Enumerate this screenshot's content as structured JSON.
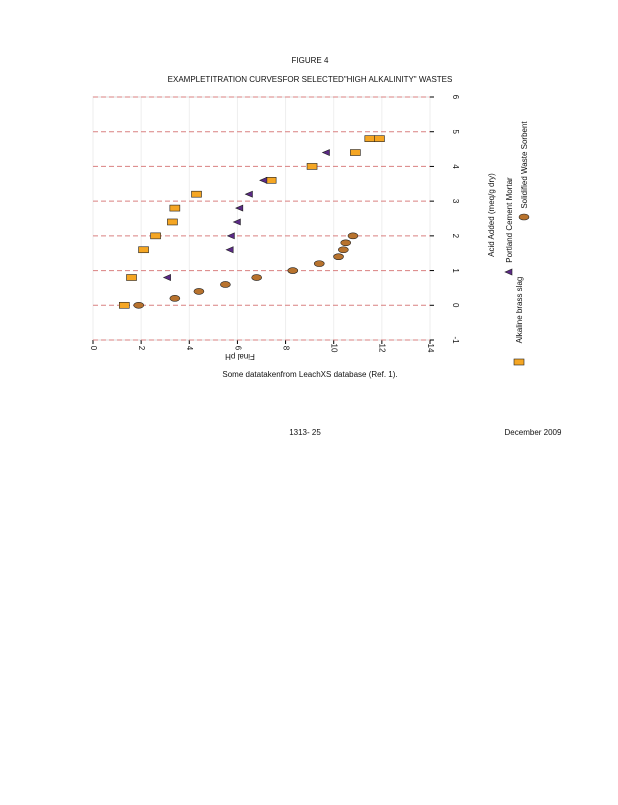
{
  "header": {
    "figure": "FIGURE 4",
    "title": "EXAMPLETITRATION   CURVESFOR  SELECTED\"HIGH  ALKALINITY\"  WASTES"
  },
  "chart_data": {
    "type": "scatter",
    "x_label": "Final pH",
    "y_label": "Acid Added (meq/g dry)",
    "xlim": [
      0,
      14
    ],
    "xticks": [
      0,
      2,
      4,
      6,
      8,
      10,
      12,
      14
    ],
    "ylim": [
      -1,
      6
    ],
    "yticks": [
      -1,
      0,
      1,
      2,
      3,
      4,
      5,
      6
    ],
    "grid": true,
    "legend": "right",
    "series": [
      {
        "name": "Alkaline brass slag",
        "color": "#f5a623",
        "marker": "square",
        "x": [
          1.3,
          1.6,
          2.1,
          2.6,
          3.3,
          3.4,
          4.3,
          7.4,
          9.1,
          10.9,
          11.5,
          11.9
        ],
        "values": [
          0,
          0.8,
          1.6,
          2.0,
          2.4,
          2.8,
          3.2,
          3.6,
          4.0,
          4.4,
          4.8,
          4.8
        ]
      },
      {
        "name": "Portland Cement Mortar",
        "color": "#5b2a86",
        "marker": "triangle",
        "x": [
          3.1,
          5.7,
          5.75,
          6.0,
          6.1,
          6.5,
          7.1,
          9.7
        ],
        "values": [
          0.8,
          1.6,
          2.0,
          2.4,
          2.8,
          3.2,
          3.6,
          4.4
        ]
      },
      {
        "name": "Solidified Waste Sorbent",
        "color": "#b8732e",
        "marker": "circle",
        "x": [
          1.9,
          3.4,
          4.4,
          5.5,
          6.8,
          8.3,
          9.4,
          10.2,
          10.4,
          10.5,
          10.8
        ],
        "values": [
          0,
          0.2,
          0.4,
          0.6,
          0.8,
          1.0,
          1.2,
          1.4,
          1.6,
          1.8,
          2.0
        ]
      }
    ]
  },
  "caption": "Some  datatakenfrom    LeachXS  database   (Ref.  1).",
  "footer": {
    "page": "1313-  25",
    "date": "December   2009"
  }
}
